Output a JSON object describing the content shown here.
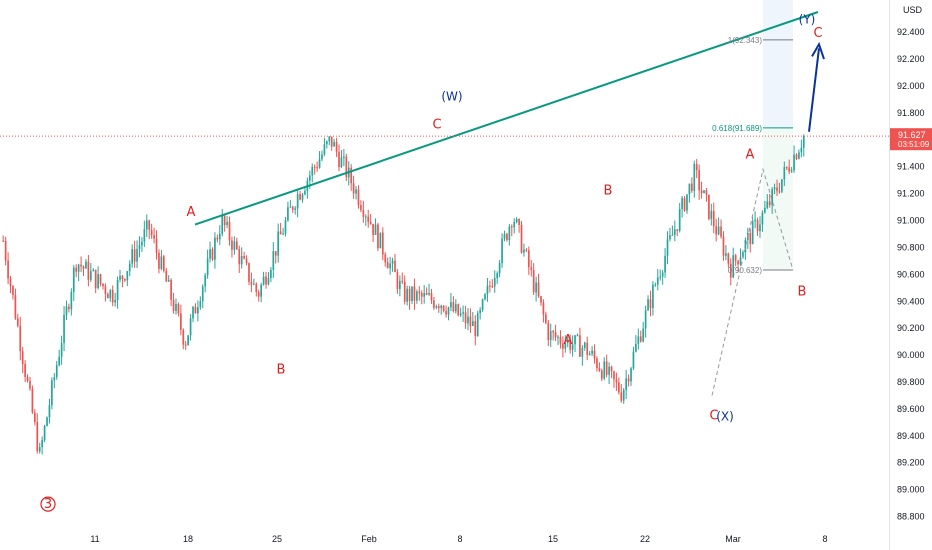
{
  "chart_data": {
    "type": "candlestick",
    "currency": "USD",
    "ylim": [
      88.7,
      92.55
    ],
    "y_ticks": [
      "92.400",
      "92.200",
      "92.000",
      "91.800",
      "91.600",
      "91.400",
      "91.200",
      "91.000",
      "90.800",
      "90.600",
      "90.400",
      "90.200",
      "90.000",
      "89.800",
      "89.600",
      "89.400",
      "89.200",
      "89.000",
      "88.800"
    ],
    "x_ticks": [
      "11",
      "18",
      "25",
      "Feb",
      "8",
      "15",
      "22",
      "Mar",
      "8"
    ],
    "last_price": {
      "value": "91.627",
      "countdown": "03:51:09"
    },
    "colors": {
      "up": "#26a69a",
      "down": "#ef5350",
      "trendline": "#089981",
      "wave_red": "#e01f1f",
      "wave_blue": "#0c3299",
      "price_line": "#ef5350"
    },
    "swing_path": [
      90.85,
      89.25,
      90.7,
      90.45,
      90.95,
      90.1,
      91.0,
      90.45,
      91.15,
      91.6,
      91.05,
      90.45,
      90.4,
      90.2,
      91.05,
      90.15,
      90.05,
      89.72,
      90.6,
      91.35,
      90.65,
      91.1,
      91.627
    ],
    "candle_count": 330,
    "trendline": {
      "from": 90.97,
      "to": 92.55
    },
    "fib": {
      "level_1": {
        "text": "1(92.343)",
        "value": 92.343
      },
      "level_0618": {
        "text": "0.618(91.689)",
        "value": 91.689
      },
      "level_0": {
        "text": "0(90.632)",
        "value": 90.632
      }
    },
    "wave_labels": [
      {
        "text": "A",
        "color": "red",
        "price": 91.07
      },
      {
        "text": "B",
        "color": "red",
        "price": 89.9
      },
      {
        "text": "C",
        "color": "red",
        "price": 91.72
      },
      {
        "text": "(W)",
        "color": "blue",
        "price": 91.93
      },
      {
        "text": "A",
        "color": "red",
        "price": 90.12
      },
      {
        "text": "B",
        "color": "red",
        "price": 91.23
      },
      {
        "text": "C",
        "color": "red",
        "price": 89.56
      },
      {
        "text": "(X)",
        "color": "blue",
        "price": 89.55
      },
      {
        "text": "A",
        "color": "red",
        "price": 91.5
      },
      {
        "text": "B",
        "color": "red",
        "price": 90.48
      },
      {
        "text": "(Y)",
        "color": "blue",
        "price": 92.5
      },
      {
        "text": "C",
        "color": "red",
        "price": 92.4
      },
      {
        "text": "3",
        "color": "red-circled",
        "price": 88.9
      }
    ]
  }
}
